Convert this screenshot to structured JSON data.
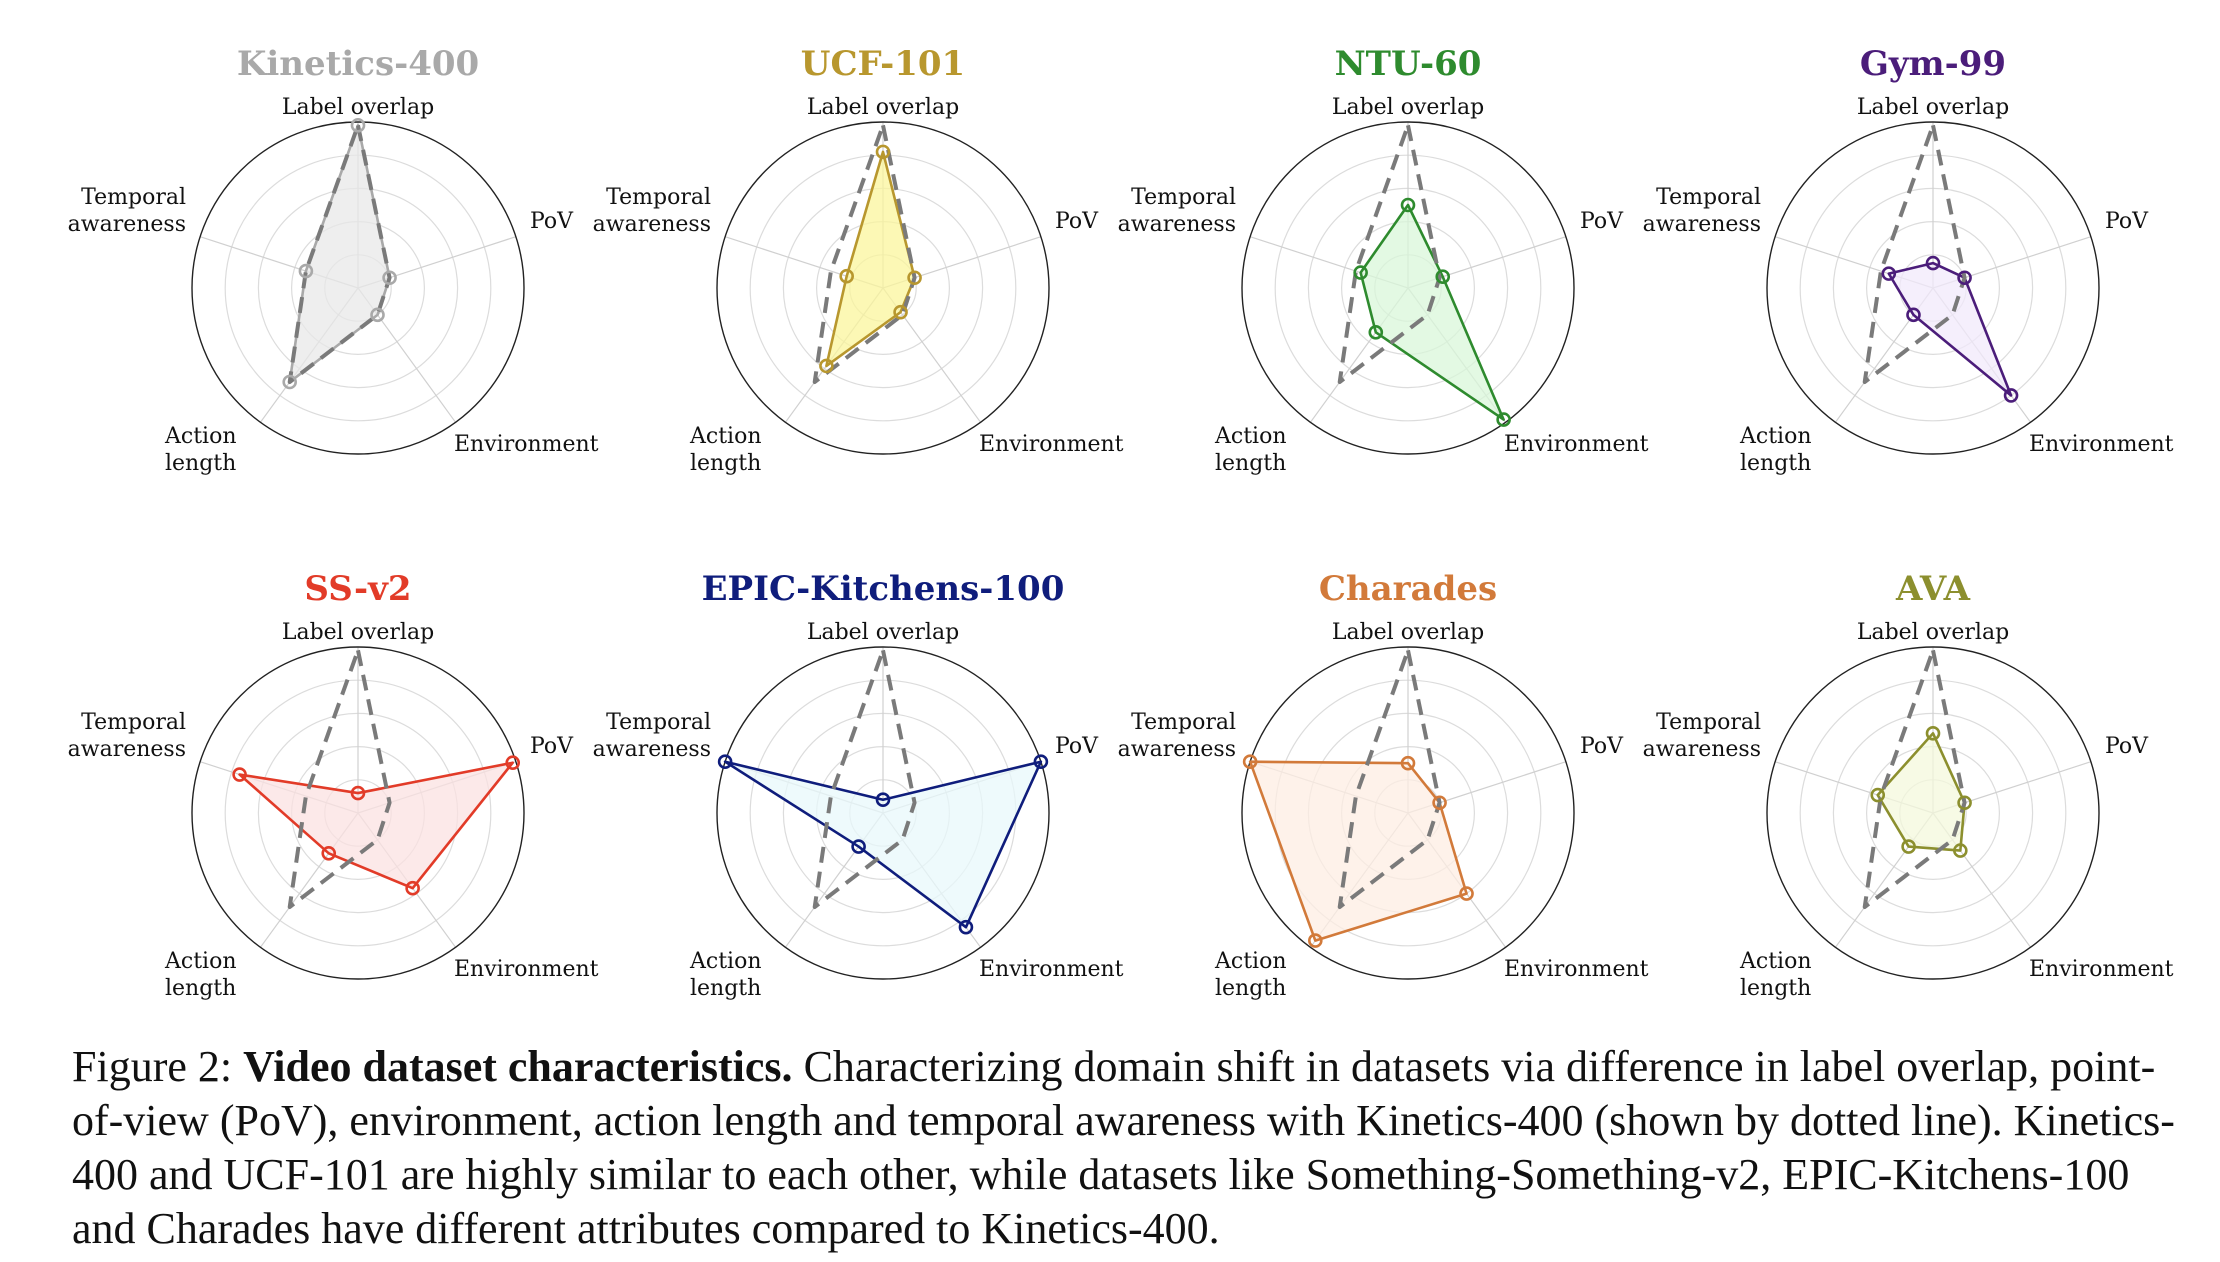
{
  "chart_data": [
    {
      "type": "radar",
      "title": "Kinetics-400",
      "color": "#a9a9a9",
      "fill": "#e8e8e8",
      "axes": [
        "Label overlap",
        "PoV",
        "Environment",
        "Action length",
        "Temporal awareness"
      ],
      "values": [
        0.98,
        0.2,
        0.2,
        0.7,
        0.33
      ]
    },
    {
      "type": "radar",
      "title": "UCF-101",
      "color": "#b8972e",
      "fill": "#fbf59c",
      "axes": [
        "Label overlap",
        "PoV",
        "Environment",
        "Action length",
        "Temporal awareness"
      ],
      "values": [
        0.82,
        0.2,
        0.18,
        0.58,
        0.23
      ]
    },
    {
      "type": "radar",
      "title": "NTU-60",
      "color": "#2e8b2e",
      "fill": "#d9f7d9",
      "axes": [
        "Label overlap",
        "PoV",
        "Environment",
        "Action length",
        "Temporal awareness"
      ],
      "values": [
        0.5,
        0.22,
        0.98,
        0.33,
        0.3
      ]
    },
    {
      "type": "radar",
      "title": "Gym-99",
      "color": "#4b1d7a",
      "fill": "#f2e9fb",
      "axes": [
        "Label overlap",
        "PoV",
        "Environment",
        "Action length",
        "Temporal awareness"
      ],
      "values": [
        0.15,
        0.2,
        0.8,
        0.2,
        0.28
      ]
    },
    {
      "type": "radar",
      "title": "SS-v2",
      "color": "#e23b28",
      "fill": "#fbe2e2",
      "axes": [
        "Label overlap",
        "PoV",
        "Environment",
        "Action length",
        "Temporal awareness"
      ],
      "values": [
        0.12,
        0.98,
        0.56,
        0.3,
        0.75
      ]
    },
    {
      "type": "radar",
      "title": "EPIC-Kitchens-100",
      "color": "#0f1d7c",
      "fill": "#e8f8fb",
      "axes": [
        "Label overlap",
        "PoV",
        "Environment",
        "Action length",
        "Temporal awareness"
      ],
      "values": [
        0.08,
        1.0,
        0.85,
        0.25,
        1.0
      ]
    },
    {
      "type": "radar",
      "title": "Charades",
      "color": "#d27a3a",
      "fill": "#fdeee3",
      "axes": [
        "Label overlap",
        "PoV",
        "Environment",
        "Action length",
        "Temporal awareness"
      ],
      "values": [
        0.3,
        0.2,
        0.6,
        0.95,
        1.0
      ]
    },
    {
      "type": "radar",
      "title": "AVA",
      "color": "#8c8f2e",
      "fill": "#f4f8dc",
      "axes": [
        "Label overlap",
        "PoV",
        "Environment",
        "Action length",
        "Temporal awareness"
      ],
      "values": [
        0.48,
        0.2,
        0.28,
        0.25,
        0.35
      ]
    }
  ],
  "reference": {
    "name": "Kinetics-400",
    "values": [
      0.98,
      0.2,
      0.2,
      0.7,
      0.33
    ]
  },
  "axis_labels": {
    "label_overlap": "Label overlap",
    "pov": "PoV",
    "environment": "Environment",
    "action_length_1": "Action",
    "action_length_2": "length",
    "temporal_1": "Temporal",
    "temporal_2": "awareness"
  },
  "caption": {
    "figure": "Figure 2:",
    "title": "Video dataset characteristics.",
    "body": "Characterizing domain shift in datasets via difference in label overlap, point-of-view (PoV), environment, action length and temporal awareness with Kinetics-400 (shown by dotted line). Kinetics-400 and UCF-101 are highly similar to each other, while datasets like Something-Something-v2, EPIC-Kitchens-100 and Charades have different attributes compared to Kinetics-400."
  }
}
